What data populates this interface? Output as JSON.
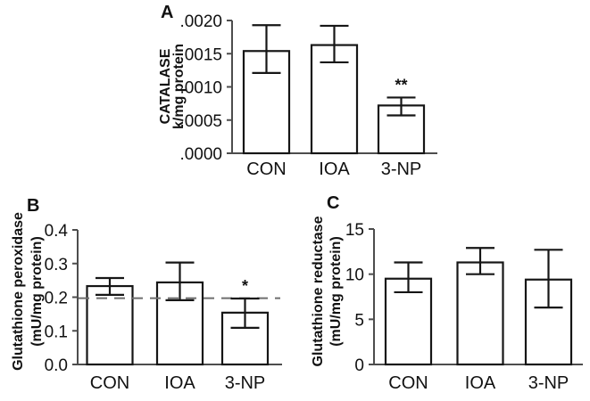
{
  "figure": {
    "background": "#ffffff",
    "axis_color": "#4d4d4d",
    "bar_fill": "#ffffff",
    "bar_stroke": "#161616",
    "error_color": "#161616",
    "text_color": "#111111",
    "dashed_line_color": "#6e6e6e"
  },
  "chart_data": [
    {
      "id": "A",
      "type": "bar",
      "panel_label": "A",
      "title": "",
      "xlabel": "",
      "ylabel": "CATALASE k/mg protein",
      "ylabel_lines": [
        "CATALASE",
        "k/mg protein"
      ],
      "categories": [
        "CON",
        "IOA",
        "3-NP"
      ],
      "values": [
        0.00154,
        0.00163,
        0.00072
      ],
      "error_upper": [
        0.00193,
        0.00192,
        0.00084
      ],
      "error_lower": [
        0.00121,
        0.00137,
        0.00057
      ],
      "significance": [
        "",
        "",
        "**"
      ],
      "ytick_labels": [
        ".0000",
        ".0005",
        ".0010",
        ".0015",
        ".0020"
      ],
      "ylim": [
        0,
        0.002
      ],
      "grid": false,
      "legend": false
    },
    {
      "id": "B",
      "type": "bar",
      "panel_label": "B",
      "title": "",
      "xlabel": "",
      "ylabel": "Glutathione peroxidase (mU/mg protein)",
      "ylabel_lines": [
        "Glutathione peroxidase",
        "(mU/mg protein)"
      ],
      "categories": [
        "CON",
        "IOA",
        "3-NP"
      ],
      "values": [
        0.233,
        0.244,
        0.154
      ],
      "error_upper": [
        0.257,
        0.303,
        0.196
      ],
      "error_lower": [
        0.207,
        0.191,
        0.109
      ],
      "significance": [
        "",
        "",
        "*"
      ],
      "ytick_labels": [
        "0.0",
        "0.1",
        "0.2",
        "0.3",
        "0.4"
      ],
      "ylim": [
        0,
        0.4
      ],
      "reference_line": 0.197,
      "grid": false,
      "legend": false
    },
    {
      "id": "C",
      "type": "bar",
      "panel_label": "C",
      "title": "",
      "xlabel": "",
      "ylabel": "Glutathione reductase (mU/mg protein)",
      "ylabel_lines": [
        "Glutathione reductase",
        "(mU/mg protein)"
      ],
      "categories": [
        "CON",
        "IOA",
        "3-NP"
      ],
      "values": [
        9.5,
        11.3,
        9.4
      ],
      "error_upper": [
        11.3,
        12.9,
        12.7
      ],
      "error_lower": [
        8.0,
        10.0,
        6.3
      ],
      "significance": [
        "",
        "",
        ""
      ],
      "ytick_labels": [
        "0",
        "5",
        "10",
        "15"
      ],
      "ylim": [
        0,
        15
      ],
      "grid": false,
      "legend": false
    }
  ]
}
